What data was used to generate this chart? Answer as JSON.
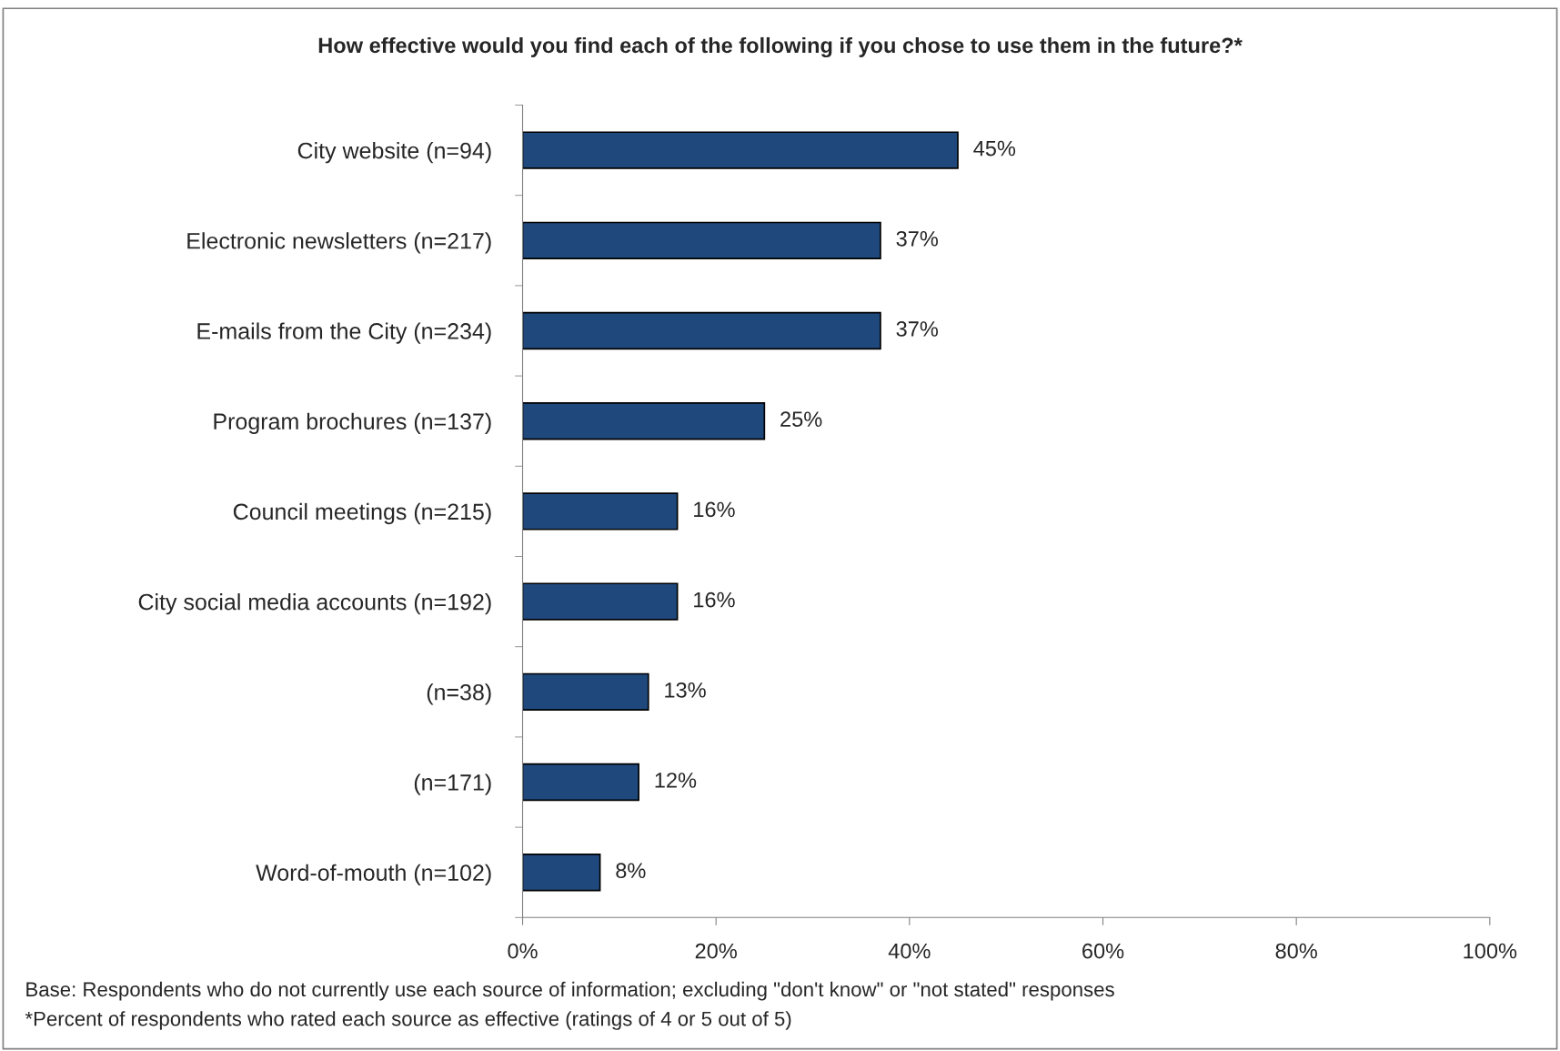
{
  "chart_data": {
    "type": "bar",
    "orientation": "horizontal",
    "title": "How effective would you find each of the following if you chose to use them in the future?*",
    "categories": [
      "City website (n=94)",
      "Electronic newsletters (n=217)",
      "E-mails from the City (n=234)",
      "Program brochures (n=137)",
      "Council meetings (n=215)",
      "City social media accounts (n=192)",
      "(n=38)",
      "(n=171)",
      "Word-of-mouth (n=102)"
    ],
    "values": [
      45,
      37,
      37,
      25,
      16,
      16,
      13,
      12,
      8
    ],
    "value_labels": [
      "45%",
      "37%",
      "37%",
      "25%",
      "16%",
      "16%",
      "13%",
      "12%",
      "8%"
    ],
    "color": "#1f497d",
    "xlim": [
      0,
      100
    ],
    "xticks": [
      {
        "value": 0,
        "label": "0%"
      },
      {
        "value": 20,
        "label": "20%"
      },
      {
        "value": 40,
        "label": "40%"
      },
      {
        "value": 60,
        "label": "60%"
      },
      {
        "value": 80,
        "label": "80%"
      },
      {
        "value": 100,
        "label": "100%"
      }
    ],
    "grid": false,
    "legend": false,
    "annotations": [
      "Base: Respondents who do not currently use each source of information; excluding \"don't know\" or \"not stated\" responses",
      "*Percent of respondents who rated each source as effective (ratings of 4 or 5 out of 5)"
    ]
  }
}
